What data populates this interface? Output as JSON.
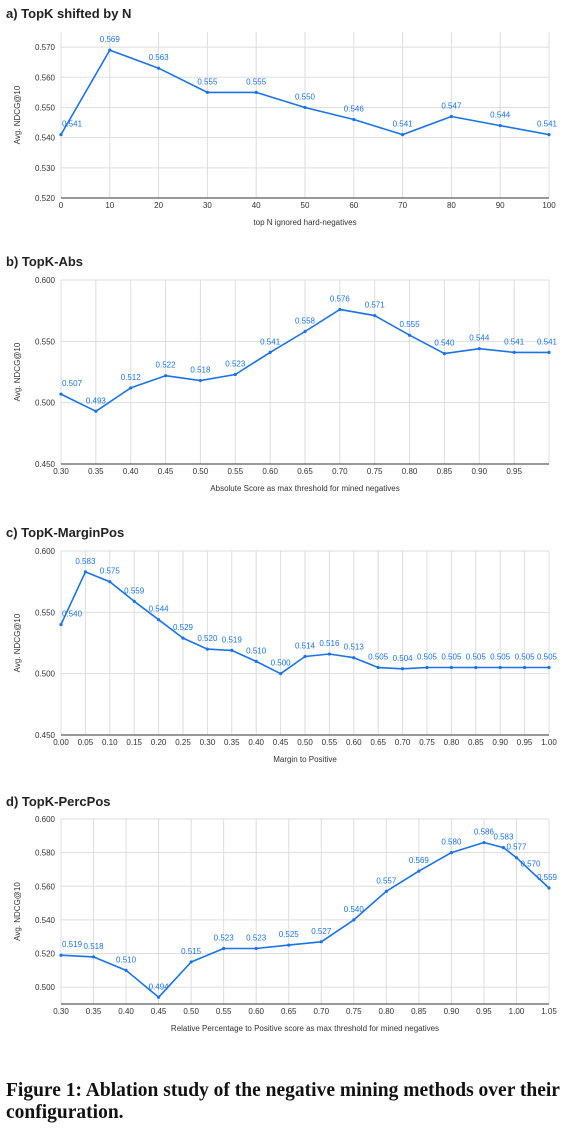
{
  "page": {
    "caption": "Figure 1: Ablation study of the negative mining methods over their configuration."
  },
  "colors": {
    "series": "#1a73e8",
    "grid": "#dddddd",
    "text": "#333333"
  },
  "chart_data": [
    {
      "type": "line",
      "title": "a) TopK shifted by N",
      "xlabel": "top N ignored hard-negatives",
      "ylabel": "Avg. NDCG@10",
      "x": [
        0,
        10,
        20,
        30,
        40,
        50,
        60,
        70,
        80,
        90,
        100
      ],
      "values": [
        0.541,
        0.569,
        0.563,
        0.555,
        0.555,
        0.55,
        0.546,
        0.541,
        0.547,
        0.544,
        0.541
      ],
      "point_labels": [
        "0.541",
        "0.569",
        "0.563",
        "0.555",
        "0.555",
        "0.550",
        "0.546",
        "0.541",
        "0.547",
        "0.544",
        "0.541"
      ],
      "xlim": [
        0,
        100
      ],
      "xticks": [
        "0",
        "10",
        "20",
        "30",
        "40",
        "50",
        "60",
        "70",
        "80",
        "90",
        "100"
      ],
      "ylim": [
        0.52,
        0.575
      ],
      "yticks": [
        0.52,
        0.53,
        0.54,
        0.55,
        0.56,
        0.57
      ],
      "ytick_labels": [
        "0.520",
        "0.530",
        "0.540",
        "0.550",
        "0.560",
        "0.570"
      ],
      "grid": "vertical-and-horizontal",
      "legend": "none"
    },
    {
      "type": "line",
      "title": "b) TopK-Abs",
      "xlabel": "Absolute Score as max threshold for mined negatives",
      "ylabel": "Avg. NDCG@10",
      "x": [
        0.3,
        0.35,
        0.4,
        0.45,
        0.5,
        0.55,
        0.6,
        0.65,
        0.7,
        0.75,
        0.8,
        0.85,
        0.9,
        0.95,
        1.0
      ],
      "values": [
        0.507,
        0.493,
        0.512,
        0.522,
        0.518,
        0.523,
        0.541,
        0.558,
        0.576,
        0.571,
        0.555,
        0.54,
        0.544,
        0.541,
        0.541
      ],
      "point_labels": [
        "0.507",
        "0.493",
        "0.512",
        "0.522",
        "0.518",
        "0.523",
        "0.541",
        "0.558",
        "0.576",
        "0.571",
        "0.555",
        "0.540",
        "0.544",
        "0.541",
        "0.541"
      ],
      "xlim": [
        0.3,
        1.0
      ],
      "xticks": [
        "0.30",
        "0.35",
        "0.40",
        "0.45",
        "0.50",
        "0.55",
        "0.60",
        "0.65",
        "0.70",
        "0.75",
        "0.80",
        "0.85",
        "0.90",
        "0.95"
      ],
      "ylim": [
        0.45,
        0.6
      ],
      "yticks": [
        0.45,
        0.5,
        0.55,
        0.6
      ],
      "ytick_labels": [
        "0.450",
        "0.500",
        "0.550",
        "0.600"
      ],
      "grid": "vertical-and-horizontal",
      "legend": "none"
    },
    {
      "type": "line",
      "title": "c) TopK-MarginPos",
      "xlabel": "Margin to Positive",
      "ylabel": "Avg. NDCG@10",
      "x": [
        0.0,
        0.05,
        0.1,
        0.15,
        0.2,
        0.25,
        0.3,
        0.35,
        0.4,
        0.45,
        0.5,
        0.55,
        0.6,
        0.65,
        0.7,
        0.75,
        0.8,
        0.85,
        0.9,
        0.95,
        1.0
      ],
      "values": [
        0.54,
        0.583,
        0.575,
        0.559,
        0.544,
        0.529,
        0.52,
        0.519,
        0.51,
        0.5,
        0.514,
        0.516,
        0.513,
        0.505,
        0.504,
        0.505,
        0.505,
        0.505,
        0.505,
        0.505,
        0.505
      ],
      "point_labels": [
        "0.540",
        "0.583",
        "0.575",
        "0.559",
        "0.544",
        "0.529",
        "0.520",
        "0.519",
        "0.510",
        "0.500",
        "0.514",
        "0.516",
        "0.513",
        "0.505",
        "0.504",
        "0.505",
        "0.505",
        "0.505",
        "0.505",
        "0.505",
        "0.505"
      ],
      "xlim": [
        0.0,
        1.0
      ],
      "xticks": [
        "0.00",
        "0.05",
        "0.10",
        "0.15",
        "0.20",
        "0.25",
        "0.30",
        "0.35",
        "0.40",
        "0.45",
        "0.50",
        "0.55",
        "0.60",
        "0.65",
        "0.70",
        "0.75",
        "0.80",
        "0.85",
        "0.90",
        "0.95",
        "1.00"
      ],
      "ylim": [
        0.45,
        0.6
      ],
      "yticks": [
        0.45,
        0.5,
        0.55,
        0.6
      ],
      "ytick_labels": [
        "0.450",
        "0.500",
        "0.550",
        "0.600"
      ],
      "grid": "vertical-and-horizontal",
      "legend": "none"
    },
    {
      "type": "line",
      "title": "d) TopK-PercPos",
      "xlabel": "Relative Percentage to Positive score as max threshold for mined negatives",
      "ylabel": "Avg. NDCG@10",
      "x": [
        0.3,
        0.35,
        0.4,
        0.45,
        0.5,
        0.55,
        0.6,
        0.65,
        0.7,
        0.75,
        0.8,
        0.85,
        0.9,
        0.95,
        0.98,
        1.0,
        1.05
      ],
      "values": [
        0.519,
        0.518,
        0.51,
        0.494,
        0.515,
        0.523,
        0.523,
        0.525,
        0.527,
        0.54,
        0.557,
        0.569,
        0.58,
        0.586,
        0.583,
        0.577,
        0.559
      ],
      "point_labels": [
        "0.519",
        "0.518",
        "0.510",
        "0.494",
        "0.515",
        "0.523",
        "0.523",
        "0.525",
        "0.527",
        "0.540",
        "0.557",
        "0.569",
        "0.580",
        "0.586",
        "0.583",
        "0.577",
        "0.559"
      ],
      "extra_labels": [
        {
          "x": 1.0,
          "value": 0.57,
          "text": "0.570"
        }
      ],
      "xlim": [
        0.3,
        1.05
      ],
      "xticks": [
        "0.30",
        "0.35",
        "0.40",
        "0.45",
        "0.50",
        "0.55",
        "0.60",
        "0.65",
        "0.70",
        "0.75",
        "0.80",
        "0.85",
        "0.90",
        "0.95",
        "1.00",
        "1.05"
      ],
      "ylim": [
        0.49,
        0.6
      ],
      "yticks": [
        0.5,
        0.52,
        0.54,
        0.56,
        0.58,
        0.6
      ],
      "ytick_labels": [
        "0.500",
        "0.520",
        "0.540",
        "0.560",
        "0.580",
        "0.600"
      ],
      "grid": "vertical-and-horizontal",
      "legend": "none"
    }
  ]
}
